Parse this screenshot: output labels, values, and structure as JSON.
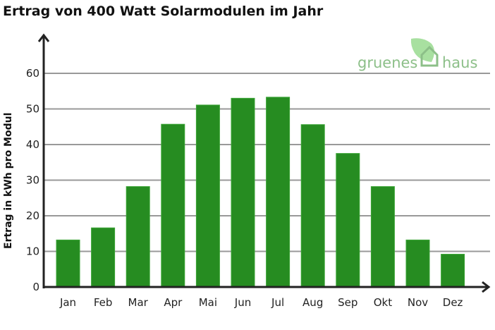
{
  "chart_data": {
    "type": "bar",
    "title": "Ertrag von 400 Watt Solarmodulen im Jahr",
    "xlabel": "",
    "ylabel": "Ertrag in kWh pro Modul",
    "categories": [
      "Jan",
      "Feb",
      "Mar",
      "Apr",
      "Mai",
      "Jun",
      "Jul",
      "Aug",
      "Sep",
      "Okt",
      "Nov",
      "Dez"
    ],
    "values": [
      13.2,
      16.6,
      28.2,
      45.7,
      51.1,
      53.0,
      53.3,
      45.6,
      37.5,
      28.2,
      13.2,
      9.2
    ],
    "ylim": [
      0,
      60
    ],
    "yticks": [
      0,
      10,
      20,
      30,
      40,
      50,
      60
    ],
    "grid": true,
    "bar_color": "#268c21"
  },
  "logo": {
    "left": "gruenes",
    "right": "haus"
  }
}
